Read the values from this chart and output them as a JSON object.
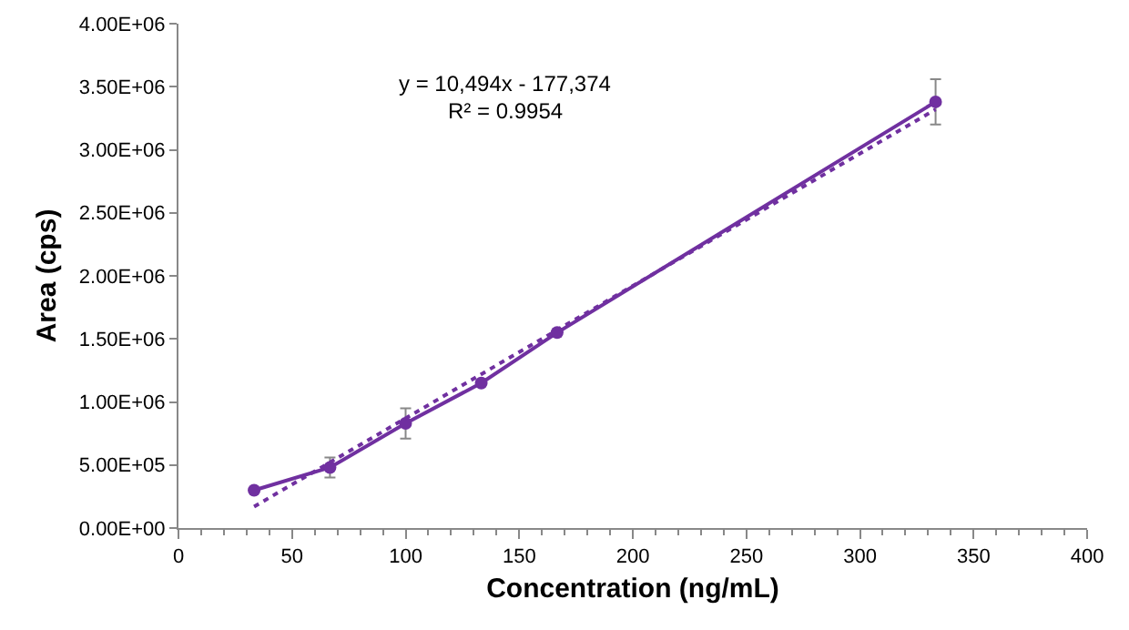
{
  "chart_data": {
    "type": "line",
    "xlabel": "Concentration (ng/mL)",
    "ylabel": "Area (cps)",
    "annotations": [
      "y = 10,494x - 177,374",
      "R² = 0.9954"
    ],
    "xlim": [
      0,
      400
    ],
    "xticks": [
      0,
      50,
      100,
      150,
      200,
      250,
      300,
      350,
      400
    ],
    "ylim": [
      0,
      4000000
    ],
    "yticks": [
      {
        "value": 0,
        "label": "0.00E+00"
      },
      {
        "value": 500000,
        "label": "5.00E+05"
      },
      {
        "value": 1000000,
        "label": "1.00E+06"
      },
      {
        "value": 1500000,
        "label": "1.50E+06"
      },
      {
        "value": 2000000,
        "label": "2.00E+06"
      },
      {
        "value": 2500000,
        "label": "2.50E+06"
      },
      {
        "value": 3000000,
        "label": "3.00E+06"
      },
      {
        "value": 3500000,
        "label": "3.50E+06"
      },
      {
        "value": 4000000,
        "label": "4.00E+06"
      }
    ],
    "grid": false,
    "marker": "circle",
    "series": [
      {
        "color": "#7030a0",
        "x": [
          33.3,
          66.7,
          100,
          133.3,
          166.7,
          333.3
        ],
        "values": [
          300000,
          480000,
          830000,
          1150000,
          1550000,
          3380000
        ],
        "errors": [
          null,
          80000,
          120000,
          null,
          null,
          180000
        ],
        "line_style": "solid"
      },
      {
        "color": "#7030a0",
        "x": [
          33.3,
          333.3
        ],
        "values": [
          170000,
          3320000
        ],
        "line_style": "dotted",
        "marker": "none"
      }
    ]
  }
}
